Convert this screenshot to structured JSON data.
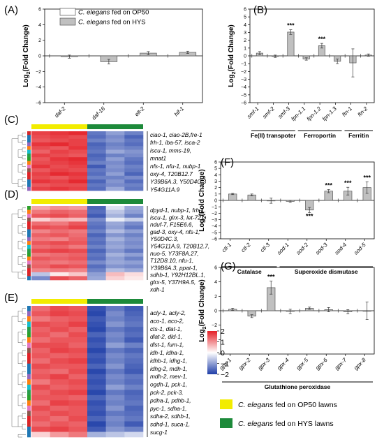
{
  "colors": {
    "bar_op50": "#ffffff",
    "bar_hys": "#c0c0c0",
    "stroke": "#555555",
    "heat_high": "#e41f26",
    "heat_mid": "#ffffff",
    "heat_low": "#1f3ea8",
    "group_op50": "#f2ec00",
    "group_hys": "#1d8a3a"
  },
  "legend_top": {
    "items": [
      {
        "italic": "C. elegans",
        "rest": " fed on OP50"
      },
      {
        "italic": "C. elegans",
        "rest": " fed on HYS"
      }
    ]
  },
  "legend_bottom": {
    "items": [
      {
        "italic": "C. elegans",
        "rest": " fed on OP50 lawns"
      },
      {
        "italic": "C. elegans",
        "rest": " fed on HYS lawns"
      }
    ]
  },
  "panel_labels": {
    "A": "(A)",
    "B": "(B)",
    "C": "(C)",
    "D": "(D)",
    "E": "(E)",
    "F": "(F)",
    "G": "(G)"
  },
  "ylabel": {
    "base": "Log",
    "sub": "2",
    "rest": "(Fold Change)"
  },
  "colorbar": {
    "ticks": [
      "2",
      "1",
      "0",
      "−1",
      "−2"
    ],
    "range": [
      -2,
      2
    ]
  },
  "chart_data": [
    {
      "id": "A",
      "type": "bar",
      "categories": [
        "daf-2",
        "daf-16",
        "elt-2",
        "hif-1"
      ],
      "values": [
        -0.1,
        -0.75,
        0.35,
        0.45
      ],
      "errors": [
        0.2,
        0.3,
        0.2,
        0.15
      ],
      "ylim": [
        -6,
        6
      ],
      "yticks": [
        -6,
        -4,
        -2,
        0,
        2,
        4,
        6
      ],
      "significance": [
        "",
        "",
        "",
        ""
      ]
    },
    {
      "id": "B",
      "type": "bar",
      "categories": [
        "smf-1",
        "smf-2",
        "smf-3",
        "fpn-1.1",
        "fpn-1.2",
        "fpn-1.3",
        "ftn-1",
        "ftn-2"
      ],
      "values": [
        0.35,
        -0.05,
        3.05,
        -0.4,
        1.3,
        -0.7,
        -0.9,
        0.1
      ],
      "errors": [
        0.2,
        0.15,
        0.3,
        0.15,
        0.3,
        0.3,
        1.8,
        0.15
      ],
      "ylim": [
        -6,
        6
      ],
      "yticks": [
        -6,
        -5,
        -4,
        -3,
        -2,
        -1,
        0,
        1,
        2,
        3,
        4,
        5,
        6
      ],
      "significance": [
        "",
        "",
        "***",
        "",
        "***",
        "",
        "",
        ""
      ],
      "groups": [
        {
          "label": "Fe(II) transpoter",
          "from": 0,
          "to": 2
        },
        {
          "label": "Ferroportin",
          "from": 3,
          "to": 5
        },
        {
          "label": "Ferritin",
          "from": 6,
          "to": 7
        }
      ]
    },
    {
      "id": "F",
      "type": "bar",
      "categories": [
        "ctl-1",
        "ctl-2",
        "ctl-3",
        "sod-1",
        "sod-2",
        "sod-3",
        "sod-4",
        "sod-5"
      ],
      "values": [
        1.0,
        0.85,
        -0.05,
        -0.15,
        -1.5,
        1.45,
        1.45,
        2.0
      ],
      "errors": [
        0.1,
        0.15,
        0.4,
        0.15,
        0.4,
        0.25,
        0.6,
        0.9
      ],
      "ylim": [
        -6,
        6
      ],
      "yticks": [
        -6,
        -5,
        -4,
        -3,
        -2,
        -1,
        0,
        1,
        2,
        3,
        4,
        5,
        6
      ],
      "significance": [
        "",
        "",
        "",
        "",
        "***",
        "***",
        "***",
        "***"
      ],
      "groups": [
        {
          "label": "Catalase",
          "from": 0,
          "to": 2
        },
        {
          "label": "Superoxide dismutase",
          "from": 3,
          "to": 7
        }
      ]
    },
    {
      "id": "G",
      "type": "bar",
      "categories": [
        "gpx-1",
        "gpx-2",
        "gpx-3",
        "gpx-4",
        "gpx-5",
        "gpx-6",
        "gpx-7",
        "gpx-8"
      ],
      "values": [
        0.2,
        -0.75,
        3.2,
        -0.1,
        0.35,
        0.15,
        -0.15,
        0.0
      ],
      "errors": [
        0.15,
        0.2,
        0.9,
        0.3,
        0.15,
        0.3,
        0.3,
        1.2
      ],
      "ylim": [
        -6,
        6
      ],
      "yticks": [
        -6,
        -4,
        -2,
        0,
        2,
        4,
        6
      ],
      "significance": [
        "",
        "",
        "***",
        "",
        "",
        "",
        "",
        ""
      ],
      "groups": [
        {
          "label": "Glutathione peroxidase",
          "from": 0,
          "to": 7
        }
      ]
    },
    {
      "id": "C",
      "type": "heatmap",
      "columns": [
        "OP50",
        "OP50",
        "OP50",
        "HYS",
        "HYS",
        "HYS"
      ],
      "gene_labels": [
        "ciao-1, ciao-2B,fre-1",
        "frh-1, iba-57, isca-2",
        "iscu-1, mms-19,",
        "mnat1",
        "nfs-1, nfu-1, nubp-1",
        "oxy-4, T20B12.7",
        "Y39B6A.3, Y50D4C.3",
        "Y54G11A.9"
      ],
      "rows": [
        [
          1.7,
          1.8,
          1.9,
          -1.4,
          -1.0,
          -1.3
        ],
        [
          1.6,
          1.7,
          1.6,
          -1.5,
          -1.2,
          -1.6
        ],
        [
          1.5,
          1.6,
          1.7,
          -1.3,
          -1.1,
          -1.4
        ],
        [
          1.8,
          1.9,
          1.7,
          -1.6,
          -1.3,
          -1.5
        ],
        [
          1.6,
          1.5,
          1.8,
          -1.5,
          -1.2,
          -1.3
        ],
        [
          1.4,
          1.7,
          1.6,
          -1.4,
          -0.9,
          -1.1
        ],
        [
          1.7,
          1.6,
          1.5,
          -1.6,
          -1.3,
          -1.2
        ],
        [
          1.5,
          1.8,
          1.9,
          -1.5,
          -1.0,
          -1.4
        ],
        [
          1.6,
          1.7,
          1.8,
          -1.3,
          -1.2,
          -1.5
        ],
        [
          1.8,
          1.6,
          1.7,
          -1.7,
          -1.1,
          -1.3
        ],
        [
          1.5,
          1.7,
          1.6,
          -1.4,
          -1.2,
          -1.4
        ],
        [
          1.7,
          1.9,
          1.8,
          -1.5,
          -1.0,
          -1.6
        ],
        [
          1.6,
          1.5,
          1.7,
          -1.3,
          -1.3,
          -1.2
        ],
        [
          1.8,
          1.7,
          1.9,
          -1.6,
          -1.1,
          -1.5
        ],
        [
          1.5,
          1.6,
          1.6,
          -1.4,
          -1.2,
          -1.3
        ],
        [
          1.7,
          1.8,
          1.7,
          -1.5,
          -0.9,
          -1.4
        ]
      ]
    },
    {
      "id": "D",
      "type": "heatmap",
      "columns": [
        "OP50",
        "OP50",
        "OP50",
        "HYS",
        "HYS",
        "HYS"
      ],
      "gene_labels": [
        "dpyd-1, nubp-1, frh-1,",
        "iscu-1, glrx-3, let-721,",
        "nduf-7, F15E6.6,",
        "gad-3, oxy-4, nfs-1,",
        "Y50D4C.3,",
        "Y54G11A.9, T20B12.7,",
        "nuo-5, Y73F8A.27,",
        "T12D8.10, nfu-1,",
        "Y39B6A.3, ppat-1,",
        "sdhb-1, Y92H12BL.1,",
        "glrx-5, Y37H9A.5,",
        "xdh-1"
      ],
      "rows": [
        [
          0.8,
          1.0,
          0.9,
          -1.6,
          -0.3,
          -0.9
        ],
        [
          1.2,
          1.4,
          1.3,
          -1.5,
          -0.6,
          -1.0
        ],
        [
          1.5,
          1.6,
          1.4,
          -1.7,
          -0.8,
          -1.3
        ],
        [
          0.4,
          0.7,
          0.6,
          -1.2,
          -0.2,
          -0.5
        ],
        [
          1.3,
          1.2,
          1.5,
          -1.4,
          -0.9,
          -1.2
        ],
        [
          1.6,
          1.5,
          1.7,
          -1.5,
          -1.0,
          -1.4
        ],
        [
          1.1,
          1.3,
          1.2,
          -1.3,
          -0.7,
          -1.0
        ],
        [
          1.4,
          1.5,
          1.3,
          -1.6,
          -1.1,
          -1.3
        ],
        [
          1.2,
          1.1,
          1.4,
          -1.4,
          -0.8,
          -1.1
        ],
        [
          1.5,
          1.6,
          1.5,
          -1.5,
          -1.0,
          -1.2
        ],
        [
          1.3,
          1.4,
          1.2,
          -1.3,
          -0.9,
          -1.1
        ],
        [
          1.6,
          1.7,
          1.6,
          -1.6,
          -1.1,
          -1.4
        ],
        [
          1.2,
          1.3,
          1.4,
          -1.4,
          -0.8,
          -1.0
        ],
        [
          1.5,
          1.4,
          1.5,
          -1.5,
          -1.0,
          -1.3
        ],
        [
          1.3,
          1.2,
          1.3,
          -1.2,
          -0.9,
          -1.0
        ],
        [
          1.4,
          1.6,
          1.5,
          -1.5,
          -1.1,
          -1.2
        ],
        [
          1.1,
          1.2,
          1.1,
          -1.3,
          -0.7,
          -0.9
        ],
        [
          -0.6,
          0.2,
          0.5,
          -1.0,
          0.6,
          0.3
        ],
        [
          -1.2,
          1.6,
          1.4,
          -0.9,
          0.4,
          0.2
        ]
      ]
    },
    {
      "id": "E",
      "type": "heatmap",
      "columns": [
        "OP50",
        "OP50",
        "OP50",
        "HYS",
        "HYS",
        "HYS"
      ],
      "gene_labels": [
        "acly-1, acly-2,",
        "aco-1, aco-2,",
        "cts-1, dlat-1,",
        "dlat-2, dld-1,",
        "dlst-1, fum-1,",
        "idh-1, idha-1,",
        "idhb-1, idhg-1,",
        "idhg-2, mdh-1,",
        "mdh-2, mev-1,",
        "ogdh-1, pck-1,",
        "pck-2, pck-3,",
        "pdha-1, pdhb-1,",
        "pyc-1, sdha-1,",
        "sdha-2, sdhb-1,",
        "sdhd-1, suca-1,",
        "sucg-1"
      ],
      "rows": [
        [
          1.3,
          1.6,
          1.5,
          -1.8,
          -1.4,
          -1.7
        ],
        [
          1.5,
          1.7,
          1.6,
          -1.9,
          -1.2,
          -1.6
        ],
        [
          1.2,
          1.4,
          1.5,
          -1.7,
          -1.3,
          -1.5
        ],
        [
          1.6,
          1.5,
          1.7,
          -1.8,
          -1.1,
          -1.4
        ],
        [
          1.4,
          1.6,
          1.4,
          -1.9,
          -1.4,
          -1.6
        ],
        [
          1.5,
          1.3,
          1.6,
          -1.6,
          -1.2,
          -1.5
        ],
        [
          1.3,
          1.5,
          1.5,
          -1.8,
          -1.3,
          -1.7
        ],
        [
          1.6,
          1.6,
          1.4,
          -1.7,
          -1.0,
          -1.3
        ],
        [
          1.4,
          1.7,
          1.6,
          -1.9,
          -1.4,
          -1.6
        ],
        [
          1.5,
          1.4,
          1.5,
          -1.7,
          -1.2,
          -1.4
        ],
        [
          1.3,
          1.6,
          1.7,
          -1.8,
          -1.3,
          -1.5
        ],
        [
          1.6,
          1.5,
          1.5,
          -1.6,
          -1.1,
          -1.6
        ],
        [
          1.4,
          1.3,
          1.6,
          -1.9,
          -1.4,
          -1.7
        ],
        [
          1.5,
          1.7,
          1.4,
          -1.7,
          -1.2,
          -1.4
        ],
        [
          1.2,
          1.5,
          1.6,
          -1.8,
          -1.3,
          -1.5
        ],
        [
          1.6,
          1.4,
          1.5,
          -1.7,
          -1.0,
          -1.3
        ],
        [
          1.4,
          1.6,
          1.7,
          -1.9,
          -1.4,
          -1.6
        ],
        [
          1.5,
          1.5,
          1.4,
          -1.6,
          -1.2,
          -1.5
        ],
        [
          1.3,
          1.7,
          1.6,
          -1.8,
          -1.3,
          -1.4
        ],
        [
          1.6,
          1.4,
          1.5,
          -1.7,
          -1.1,
          -1.6
        ],
        [
          1.4,
          1.6,
          1.5,
          -1.8,
          -1.4,
          -1.5
        ],
        [
          1.5,
          1.3,
          1.6,
          -1.6,
          -1.2,
          -1.4
        ],
        [
          1.3,
          1.5,
          1.4,
          -1.9,
          -1.3,
          -1.7
        ],
        [
          1.6,
          1.7,
          1.5,
          -1.7,
          -1.1,
          -1.3
        ],
        [
          0.4,
          0.9,
          1.2,
          -0.8,
          -0.6,
          -0.4
        ]
      ]
    }
  ]
}
